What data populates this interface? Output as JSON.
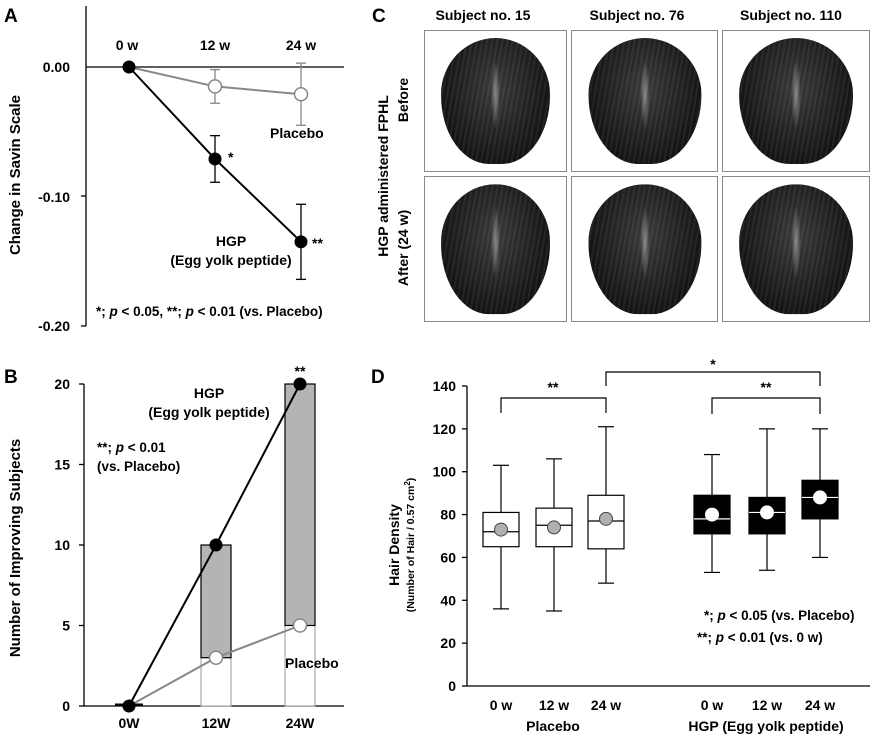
{
  "panels": {
    "A": {
      "label": "A"
    },
    "B": {
      "label": "B"
    },
    "C": {
      "label": "C"
    },
    "D": {
      "label": "D"
    }
  },
  "colors": {
    "hgp": "#000000",
    "placebo": "#888888",
    "bar_fill": "#b4b4b4",
    "marker_gray": "#b0b0b0"
  },
  "chart_data": [
    {
      "panel": "A",
      "type": "line",
      "ylabel": "Change in Savin Scale",
      "x_categories": [
        "0 w",
        "12 w",
        "24 w"
      ],
      "ylim": [
        -0.2,
        0.0
      ],
      "yticks": [
        "0.00",
        "-0.10",
        "-0.20"
      ],
      "series": [
        {
          "name": "Placebo",
          "values": [
            0.0,
            -0.015,
            -0.021
          ],
          "errors": [
            0,
            0.013,
            0.024
          ]
        },
        {
          "name": "HGP (Egg yolk peptide)",
          "values": [
            0.0,
            -0.071,
            -0.135
          ],
          "errors": [
            0,
            0.018,
            0.029
          ]
        }
      ],
      "annotations": {
        "hgp_label_1": "HGP",
        "hgp_label_2": "(Egg yolk peptide)",
        "placebo_label": "Placebo",
        "sig_12w": "*",
        "sig_24w": "**"
      },
      "footnote": {
        "part1": "*; ",
        "p1": "p",
        "part2": " < 0.05, **; ",
        "p2": "p",
        "part3": " < 0.01 (vs. Placebo)"
      }
    },
    {
      "panel": "B",
      "type": "line",
      "ylabel": "Number of Improving Subjects",
      "categories": [
        "0W",
        "12W",
        "24W"
      ],
      "ylim": [
        0,
        20
      ],
      "yticks": [
        "0",
        "5",
        "10",
        "15",
        "20"
      ],
      "series": [
        {
          "name": "HGP (Egg yolk peptide)",
          "values": [
            0,
            10,
            20
          ]
        },
        {
          "name": "Placebo",
          "values": [
            0,
            3,
            5
          ]
        }
      ],
      "annotations": {
        "hgp_label_1": "HGP",
        "hgp_label_2": "(Egg yolk peptide)",
        "placebo_label": "Placebo",
        "sig_24w": "**"
      },
      "footnote": {
        "line1_a": "**; ",
        "line1_p": "p",
        "line1_b": " < 0.01",
        "line2": "(vs. Placebo)"
      }
    },
    {
      "panel": "D",
      "type": "box",
      "ylabel_1": "Hair Density",
      "ylabel_2a": "(Number of  Hair / 0.57 cm",
      "ylabel_2sup": "2",
      "ylabel_2b": ")",
      "ylim": [
        0,
        140
      ],
      "yticks": [
        "0",
        "20",
        "40",
        "60",
        "80",
        "100",
        "120",
        "140"
      ],
      "groups": [
        {
          "name": "Placebo",
          "boxes": [
            {
              "label": "0 w",
              "min": 36,
              "q1": 65,
              "median": 72,
              "q3": 81,
              "max": 103,
              "mean": 73
            },
            {
              "label": "12 w",
              "min": 35,
              "q1": 65,
              "median": 75,
              "q3": 83,
              "max": 106,
              "mean": 74
            },
            {
              "label": "24 w",
              "min": 48,
              "q1": 64,
              "median": 77,
              "q3": 89,
              "max": 121,
              "mean": 78
            }
          ]
        },
        {
          "name": "HGP (Egg yolk peptide)",
          "boxes": [
            {
              "label": "0 w",
              "min": 53,
              "q1": 71,
              "median": 78,
              "q3": 89,
              "max": 108,
              "mean": 80
            },
            {
              "label": "12 w",
              "min": 54,
              "q1": 71,
              "median": 81,
              "q3": 88,
              "max": 120,
              "mean": 81
            },
            {
              "label": "24 w",
              "min": 60,
              "q1": 78,
              "median": 88,
              "q3": 96,
              "max": 120,
              "mean": 88
            }
          ]
        }
      ],
      "brackets": {
        "placebo": "**",
        "between": "*",
        "hgp": "**"
      },
      "footnote": {
        "line1_a": "*; ",
        "line1_p": "p",
        "line1_b": " < 0.05 (vs. Placebo)",
        "line2_a": "**; ",
        "line2_p": "p",
        "line2_b": " < 0.01 (vs. 0 w)"
      }
    }
  ],
  "photos": {
    "columns": [
      "Subject no. 15",
      "Subject no. 76",
      "Subject no. 110"
    ],
    "side_label_main": "HGP administered FPHL",
    "row_before": "Before",
    "row_after": "After (24 w)"
  }
}
